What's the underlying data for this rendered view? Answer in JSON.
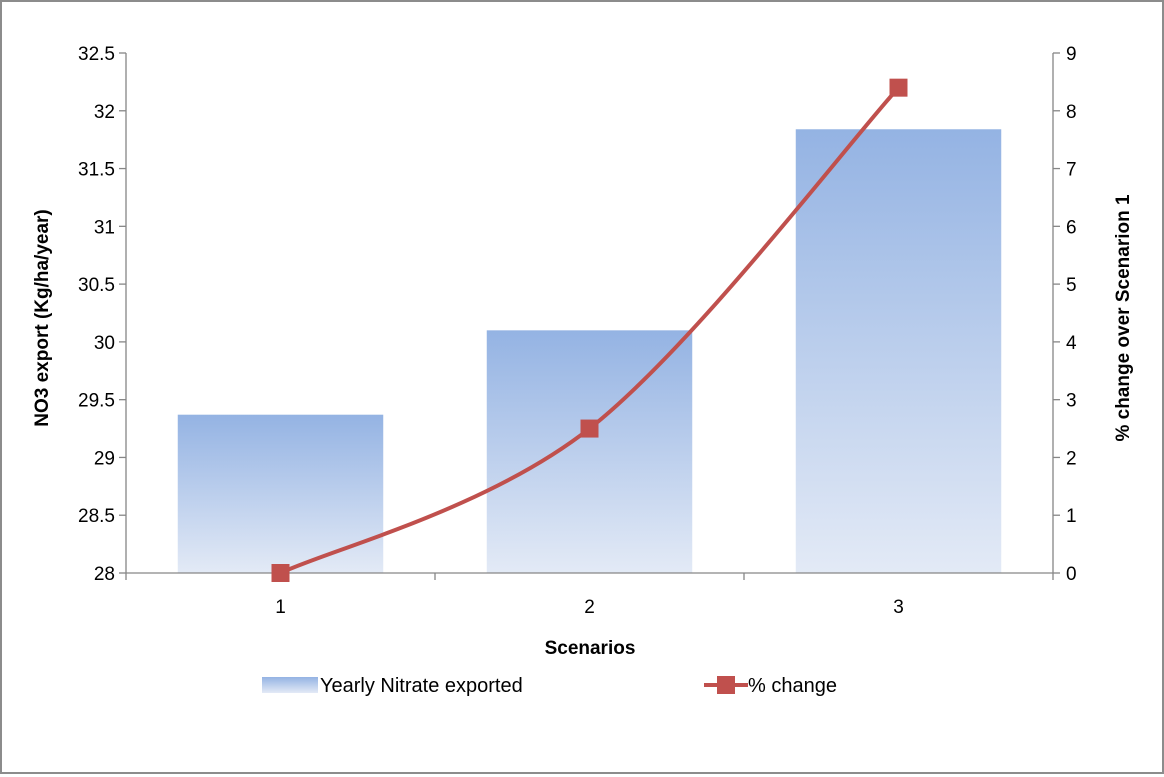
{
  "chart_data": {
    "type": "bar",
    "categories": [
      "1",
      "2",
      "3"
    ],
    "series": [
      {
        "name": "Yearly Nitrate exported",
        "type": "bar",
        "axis": "left",
        "values": [
          29.37,
          30.1,
          31.84
        ]
      },
      {
        "name": "% change",
        "type": "line",
        "axis": "right",
        "values": [
          0,
          2.5,
          8.4
        ]
      }
    ],
    "xlabel": "Scenarios",
    "ylabel": "NO3 export (Kg/ha/year)",
    "y2label": "% change over Scenarion 1",
    "ylim": [
      28,
      32.5
    ],
    "yticks": [
      "28",
      "28.5",
      "29",
      "29.5",
      "30",
      "30.5",
      "31",
      "31.5",
      "32",
      "32.5"
    ],
    "y2lim": [
      0,
      9
    ],
    "y2ticks": [
      "0",
      "1",
      "2",
      "3",
      "4",
      "5",
      "6",
      "7",
      "8",
      "9"
    ],
    "grid": false,
    "legend_position": "bottom",
    "colors": {
      "bar_top": "#94b3e3",
      "bar_bottom": "#e3eaf6",
      "line": "#c0504d",
      "marker": "#c0504d",
      "axis": "#868686",
      "text": "#000000"
    }
  }
}
